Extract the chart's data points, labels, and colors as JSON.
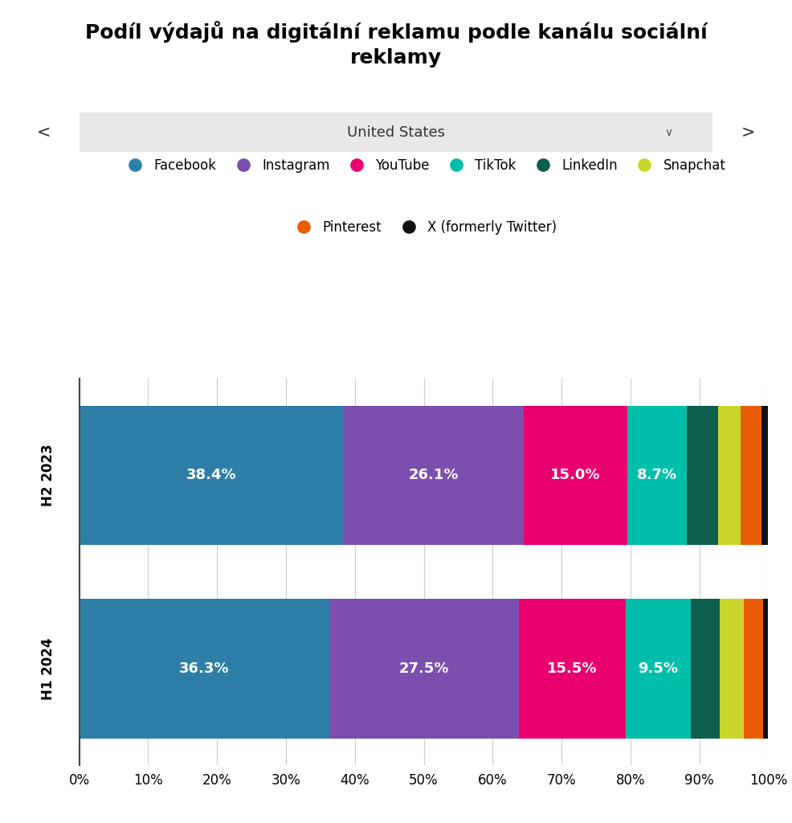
{
  "title": "Podíl výdajů na digitální reklamu podle kanálu sociální\nreklamy",
  "country_label": "United States",
  "categories": [
    "H2 2023",
    "H1 2024"
  ],
  "series": [
    {
      "name": "Facebook",
      "color": "#2e7fa8",
      "values": [
        38.4,
        36.3
      ]
    },
    {
      "name": "Instagram",
      "color": "#7b4fae",
      "values": [
        26.1,
        27.5
      ]
    },
    {
      "name": "YouTube",
      "color": "#e9006e",
      "values": [
        15.0,
        15.5
      ]
    },
    {
      "name": "TikTok",
      "color": "#00bfaa",
      "values": [
        8.7,
        9.5
      ]
    },
    {
      "name": "LinkedIn",
      "color": "#0e5e4e",
      "values": [
        4.5,
        4.2
      ]
    },
    {
      "name": "Snapchat",
      "color": "#c8d62b",
      "values": [
        3.3,
        3.5
      ]
    },
    {
      "name": "Pinterest",
      "color": "#e85d04",
      "values": [
        3.0,
        2.8
      ]
    },
    {
      "name": "X (formerly Twitter)",
      "color": "#111111",
      "values": [
        1.0,
        0.7
      ]
    }
  ],
  "label_values": {
    "H2 2023": {
      "Facebook": "38.4%",
      "Instagram": "26.1%",
      "YouTube": "15.0%",
      "TikTok": "8.7%"
    },
    "H1 2024": {
      "Facebook": "36.3%",
      "Instagram": "27.5%",
      "YouTube": "15.5%",
      "TikTok": "9.5%"
    }
  },
  "background_color": "#ffffff",
  "bar_height": 0.72,
  "xlim": [
    0,
    100
  ],
  "xticks": [
    0,
    10,
    20,
    30,
    40,
    50,
    60,
    70,
    80,
    90,
    100
  ],
  "title_fontsize": 18,
  "label_fontsize": 13,
  "legend_fontsize": 12,
  "ytick_fontsize": 12,
  "xtick_fontsize": 12,
  "selector_fontsize": 13,
  "arrow_fontsize": 15,
  "chevron_char": "∨"
}
